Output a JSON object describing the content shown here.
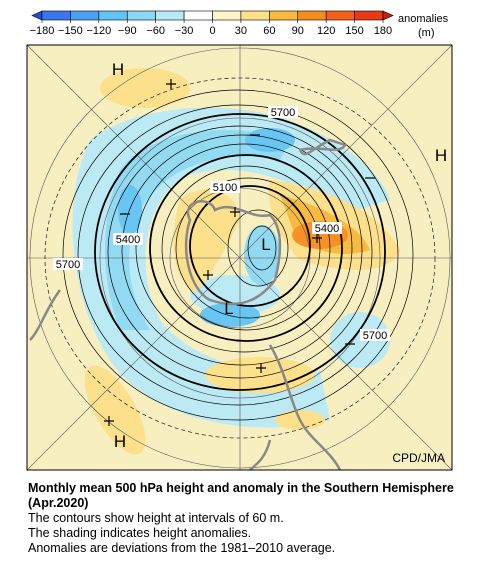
{
  "colorbar": {
    "ticks": [
      {
        "value": -180,
        "label": "−180"
      },
      {
        "value": -150,
        "label": "−150"
      },
      {
        "value": -120,
        "label": "−120"
      },
      {
        "value": -90,
        "label": "−90"
      },
      {
        "value": -60,
        "label": "−60"
      },
      {
        "value": -30,
        "label": "−30"
      },
      0,
      30,
      60,
      90,
      120,
      150,
      180
    ],
    "colors": [
      "#1f4fd8",
      "#3b78f0",
      "#4aa0f5",
      "#62c3f5",
      "#8dd8f5",
      "#b8e9f7",
      "#ffffff",
      "#fff5c8",
      "#fde08a",
      "#f9b93c",
      "#f78d1e",
      "#f2601a",
      "#e83a14",
      "#c81e0e"
    ],
    "label": [
      "anomalies",
      "(m)"
    ]
  },
  "map": {
    "centers": [
      "H",
      "H",
      "H",
      "L",
      "L"
    ],
    "contour_labels": [
      "5700",
      "5100",
      "5400",
      "5400",
      "5700",
      "5700"
    ],
    "credit": "CPD/JMA"
  },
  "caption": {
    "title": "Monthly mean 500 hPa height and anomaly in the Southern Hemisphere (Apr.2020)",
    "lines": [
      "The contours show height at intervals of 60 m.",
      "The shading indicates height anomalies.",
      "Anomalies are deviations from the 1981–2010 average."
    ]
  }
}
